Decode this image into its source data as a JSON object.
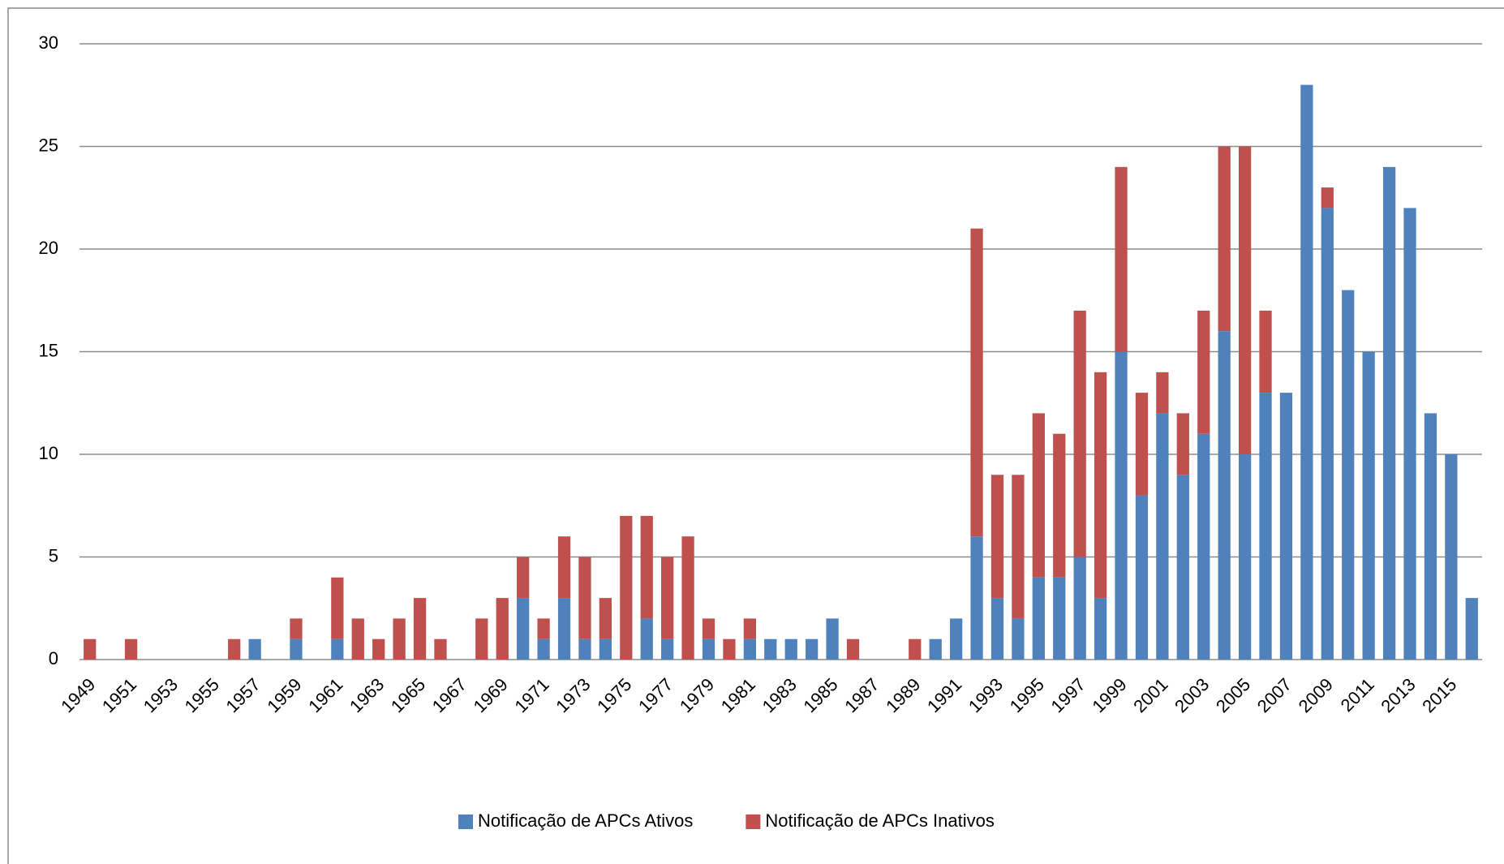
{
  "chart_data": {
    "type": "stacked_bar",
    "categories": [
      "1949",
      null,
      "1951",
      null,
      "1953",
      null,
      "1955",
      null,
      "1957",
      null,
      "1959",
      null,
      "1961",
      null,
      "1963",
      null,
      "1965",
      null,
      "1967",
      null,
      "1969",
      null,
      "1971",
      null,
      "1973",
      null,
      "1975",
      null,
      "1977",
      null,
      "1979",
      null,
      "1981",
      null,
      "1983",
      null,
      "1985",
      null,
      "1987",
      null,
      "1989",
      null,
      "1991",
      null,
      "1993",
      null,
      "1995",
      null,
      "1997",
      null,
      "1999",
      null,
      "2001",
      null,
      "2003",
      null,
      "2005",
      null,
      "2007",
      null,
      "2009",
      null,
      "2011",
      null,
      "2013",
      null,
      "2015",
      null
    ],
    "series": [
      {
        "name": "Notificação de APCs Ativos",
        "color": "#4f81bd",
        "values": [
          0,
          0,
          0,
          0,
          0,
          0,
          0,
          0,
          1,
          0,
          1,
          0,
          1,
          0,
          0,
          0,
          0,
          0,
          0,
          0,
          0,
          3,
          1,
          3,
          1,
          1,
          0,
          2,
          1,
          0,
          1,
          0,
          1,
          1,
          1,
          1,
          2,
          0,
          0,
          0,
          0,
          1,
          2,
          6,
          3,
          2,
          4,
          4,
          5,
          3,
          15,
          8,
          12,
          9,
          11,
          16,
          10,
          13,
          13,
          28,
          22,
          18,
          15,
          24,
          22,
          12,
          10,
          3
        ]
      },
      {
        "name": "Notificação de APCs Inativos",
        "color": "#c0504d",
        "values": [
          1,
          0,
          1,
          0,
          0,
          0,
          0,
          1,
          0,
          0,
          1,
          0,
          3,
          2,
          1,
          2,
          3,
          1,
          0,
          2,
          3,
          2,
          1,
          3,
          4,
          2,
          7,
          5,
          4,
          6,
          1,
          1,
          1,
          0,
          0,
          0,
          0,
          1,
          0,
          0,
          1,
          0,
          0,
          15,
          6,
          7,
          8,
          7,
          12,
          11,
          9,
          5,
          2,
          3,
          6,
          9,
          15,
          4,
          0,
          0,
          1,
          0,
          0,
          0,
          0,
          0,
          0,
          0
        ]
      }
    ],
    "ylim": [
      0,
      30
    ],
    "yticks": [
      0,
      5,
      10,
      15,
      20,
      25,
      30
    ],
    "grid": true,
    "legend": "bottom"
  }
}
